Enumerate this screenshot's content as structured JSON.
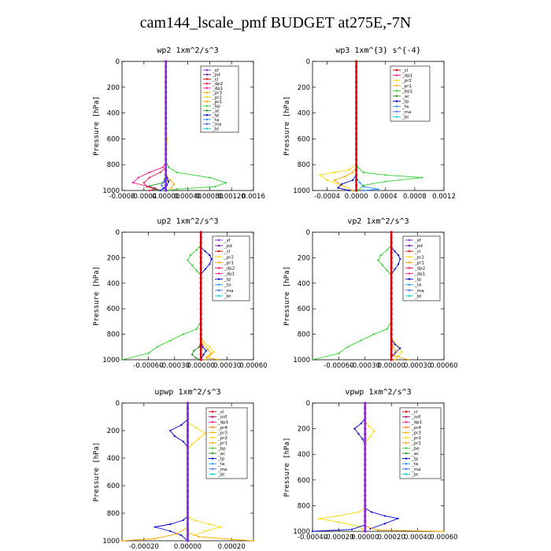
{
  "title": "cam144_lscale_pmf  BUDGET at275E,-7N",
  "colors": {
    "sf": "#8a2be2",
    "pd": "#5a0fa0",
    "cl": "#d20000",
    "mfl": "#a0005a",
    "dp1": "#ff1493",
    "dp2": "#e6194b",
    "pr1": "#ffa500",
    "pr2": "#ffd700",
    "pr3": "#ffb000",
    "pr4": "#ff7f00",
    "bp": "#32cd32",
    "ac": "#228b22",
    "tp": "#0000cd",
    "ta": "#1e90ff",
    "ma": "#4169e1",
    "bt": "#00ced1"
  },
  "chart_data": [
    {
      "type": "line",
      "title": "wp2  1xm^2/s^3",
      "ylabel": "Pressure [hPa]",
      "ylim": [
        1000,
        0
      ],
      "yticks": [
        "0",
        "200",
        "400",
        "600",
        "800",
        "1000"
      ],
      "xlim": [
        -0.0008,
        0.0016
      ],
      "xticks": [
        "-0.0008",
        "-0.0004",
        "0.00000",
        "0.00040",
        "0.00080",
        "0.00120",
        "0.0016"
      ],
      "legend": [
        "_sf",
        "_pd",
        "_cl",
        "_dp2",
        "_dp1",
        "_pr3",
        "_pr2",
        "_pr1",
        "_bp",
        "_ac",
        "_tp",
        "_ta",
        "_ma",
        "_bt"
      ],
      "series": [
        {
          "key": "bp",
          "x": [
            0,
            0,
            1e-05,
            5e-05,
            0.0002,
            0.0008,
            0.0011,
            0.0009,
            0.0002,
            5e-05
          ],
          "y": [
            0,
            700,
            780,
            820,
            860,
            900,
            940,
            970,
            990,
            1000
          ]
        },
        {
          "key": "dp1",
          "x": [
            0,
            0,
            -5e-05,
            -0.0003,
            -0.0005,
            -0.0006,
            -0.0002,
            -0.0001
          ],
          "y": [
            0,
            780,
            820,
            860,
            900,
            940,
            980,
            1000
          ]
        },
        {
          "key": "dp2",
          "x": [
            0,
            0,
            -0.0001,
            -0.0003,
            -0.0004,
            -0.00035,
            -0.0002,
            -0.0003
          ],
          "y": [
            0,
            820,
            860,
            900,
            940,
            970,
            990,
            1000
          ]
        },
        {
          "key": "pr1",
          "x": [
            0,
            0,
            2e-05,
            8e-05,
            0.00015,
            0.0001,
            3e-05
          ],
          "y": [
            0,
            860,
            890,
            920,
            950,
            980,
            1000
          ]
        },
        {
          "key": "ac",
          "x": [
            0,
            0,
            -2e-05,
            -5e-05,
            -0.0003,
            -0.0002,
            -0.0001
          ],
          "y": [
            0,
            880,
            910,
            940,
            965,
            990,
            1000
          ]
        },
        {
          "key": "tp",
          "x": [
            0,
            0,
            2e-05,
            5e-05,
            2e-05,
            -5e-05,
            -0.0001
          ],
          "y": [
            0,
            870,
            900,
            930,
            960,
            985,
            1000
          ]
        },
        {
          "key": "ma",
          "x": [
            0,
            0,
            -3e-05,
            -8e-05,
            -2e-05,
            2e-05
          ],
          "y": [
            0,
            900,
            930,
            960,
            985,
            1000
          ]
        },
        {
          "key": "pr2",
          "x": [
            0,
            0,
            1e-05,
            0,
            2e-05,
            0
          ],
          "y": [
            0,
            150,
            230,
            300,
            600,
            1000
          ]
        },
        {
          "key": "cl",
          "x": [
            0,
            0
          ],
          "y": [
            0,
            1000
          ]
        },
        {
          "key": "sf",
          "x": [
            0,
            0
          ],
          "y": [
            0,
            1000
          ]
        }
      ]
    },
    {
      "type": "line",
      "title": "wp3  1xm^{3} s^{-4}",
      "ylabel": "Pressure [hPa]",
      "ylim": [
        1000,
        0
      ],
      "yticks": [
        "0",
        "200",
        "400",
        "600",
        "800",
        "1000"
      ],
      "xlim": [
        -0.0006,
        0.0012
      ],
      "xticks": [
        "-0.0004",
        "0.0000",
        "0.0004",
        "0.0008",
        "0.0012"
      ],
      "legend": [
        "_cl",
        "_dp1",
        "_pr2",
        "_pr1",
        "_bp1",
        "_ac",
        "_tp",
        "_ta",
        "_ma",
        "_bt"
      ],
      "series": [
        {
          "key": "bp",
          "x": [
            0,
            0,
            2e-05,
            0.0001,
            0.0004,
            0.0009,
            0.0004,
            0.0001,
            2e-05
          ],
          "y": [
            0,
            780,
            820,
            860,
            880,
            900,
            930,
            960,
            1000
          ]
        },
        {
          "key": "pr2",
          "x": [
            0,
            0,
            -0.0001,
            -0.0003,
            -0.0005,
            -0.0004,
            -0.0002,
            -5e-05
          ],
          "y": [
            0,
            800,
            840,
            860,
            880,
            920,
            960,
            1000
          ]
        },
        {
          "key": "pr1",
          "x": [
            0,
            0,
            -5e-05,
            -0.00015,
            -0.0003,
            -0.0002,
            -5e-05
          ],
          "y": [
            0,
            820,
            860,
            890,
            920,
            960,
            1000
          ]
        },
        {
          "key": "tp",
          "x": [
            0,
            0,
            -5e-05,
            -0.0002,
            -0.00025,
            -0.0001
          ],
          "y": [
            0,
            880,
            920,
            950,
            980,
            1000
          ]
        },
        {
          "key": "ta",
          "x": [
            0,
            0,
            5e-05,
            0.0001,
            0.0003,
            0.0001
          ],
          "y": [
            0,
            900,
            940,
            970,
            990,
            1000
          ]
        },
        {
          "key": "cl",
          "x": [
            0,
            0
          ],
          "y": [
            0,
            1000
          ]
        }
      ]
    },
    {
      "type": "line",
      "title": "up2  1xm^2/s^3",
      "ylabel": "Pressure [hPa]",
      "ylim": [
        1000,
        0
      ],
      "yticks": [
        "0",
        "200",
        "400",
        "600",
        "800",
        "1000"
      ],
      "xlim": [
        -0.0009,
        0.0006
      ],
      "xticks": [
        "-0.00060",
        "-0.00030",
        "0.00000",
        "0.00030",
        "0.00060"
      ],
      "legend": [
        "_sf",
        "_pd",
        "_cl",
        "_pr2",
        "_pr1",
        "_dp2",
        "_dp1",
        "_tp",
        "_ta",
        "_ma",
        "_bt"
      ],
      "series": [
        {
          "key": "bp",
          "x": [
            0,
            -5e-05,
            -0.00012,
            -0.00015,
            -0.0001,
            -5e-05,
            0,
            0
          ],
          "y": [
            100,
            140,
            180,
            220,
            260,
            300,
            340,
            360
          ]
        },
        {
          "key": "tp",
          "x": [
            0,
            5e-05,
            0.0001,
            0.00012,
            0.0001,
            5e-05,
            0
          ],
          "y": [
            120,
            150,
            180,
            210,
            250,
            290,
            330
          ]
        },
        {
          "key": "bp",
          "x": [
            0,
            -5e-05,
            -0.0002,
            -0.00035,
            -0.0005,
            -0.0006,
            -0.0009
          ],
          "y": [
            700,
            760,
            800,
            850,
            900,
            950,
            1000
          ]
        },
        {
          "key": "pr2",
          "x": [
            0,
            3e-05,
            0.0001,
            0.00015,
            0.0001,
            5e-05
          ],
          "y": [
            820,
            860,
            900,
            940,
            970,
            1000
          ]
        },
        {
          "key": "pr1",
          "x": [
            0,
            2e-05,
            8e-05,
            0.00012,
            6e-05,
            0.0002
          ],
          "y": [
            840,
            880,
            920,
            950,
            980,
            1000
          ]
        },
        {
          "key": "tp",
          "x": [
            0,
            2e-05,
            6e-05,
            3e-05,
            0
          ],
          "y": [
            860,
            900,
            930,
            960,
            1000
          ]
        },
        {
          "key": "ac",
          "x": [
            0,
            -2e-05,
            -8e-05,
            -0.0001,
            -6e-05,
            0
          ],
          "y": [
            860,
            900,
            930,
            960,
            985,
            1000
          ]
        },
        {
          "key": "cl",
          "x": [
            0,
            0
          ],
          "y": [
            0,
            1000
          ]
        }
      ]
    },
    {
      "type": "line",
      "title": "vp2  1xm^2/s^3",
      "ylabel": "Pressure [hPa]",
      "ylim": [
        1000,
        0
      ],
      "yticks": [
        "0",
        "200",
        "400",
        "600",
        "800",
        "1000"
      ],
      "xlim": [
        -0.0009,
        0.0006
      ],
      "xticks": [
        "-0.00060",
        "-0.00030",
        "0.00000",
        "0.00030",
        "0.00060"
      ],
      "legend": [
        "_sf",
        "_pd",
        "_cl",
        "_pr2",
        "_pr1",
        "_dp2",
        "_dp1",
        "_tp",
        "_ta",
        "_ma",
        "_bt"
      ],
      "series": [
        {
          "key": "bp",
          "x": [
            0,
            -5e-05,
            -0.00012,
            -0.00015,
            -0.0001,
            -5e-05,
            0,
            0
          ],
          "y": [
            100,
            140,
            180,
            220,
            260,
            300,
            340,
            360
          ]
        },
        {
          "key": "tp",
          "x": [
            0,
            4e-05,
            8e-05,
            0.0001,
            8e-05,
            4e-05,
            0
          ],
          "y": [
            120,
            150,
            180,
            210,
            250,
            290,
            330
          ]
        },
        {
          "key": "bp",
          "x": [
            0,
            -5e-05,
            -0.0002,
            -0.00035,
            -0.0005,
            -0.0006,
            -0.0009
          ],
          "y": [
            700,
            760,
            800,
            850,
            900,
            950,
            1000
          ]
        },
        {
          "key": "pr2",
          "x": [
            0,
            3e-05,
            8e-05,
            0.00012,
            8e-05,
            4e-05
          ],
          "y": [
            820,
            860,
            900,
            940,
            970,
            1000
          ]
        },
        {
          "key": "tp",
          "x": [
            0,
            4e-05,
            0.0001,
            5e-05,
            0
          ],
          "y": [
            840,
            880,
            910,
            940,
            980
          ]
        },
        {
          "key": "pr1",
          "x": [
            0,
            2e-05,
            6e-05,
            3e-05,
            0.0002
          ],
          "y": [
            860,
            900,
            940,
            970,
            1000
          ]
        },
        {
          "key": "cl",
          "x": [
            0,
            0
          ],
          "y": [
            0,
            1000
          ]
        }
      ]
    },
    {
      "type": "line",
      "title": "upwp  1xm^2/s^3",
      "ylabel": "Pressure [hPa]",
      "ylim": [
        1000,
        0
      ],
      "yticks": [
        "0",
        "200",
        "400",
        "600",
        "800",
        "1000"
      ],
      "xlim": [
        -0.0003,
        0.0003
      ],
      "xticks": [
        "-0.00020",
        "0.00000",
        "0.00020"
      ],
      "legend": [
        "_cl",
        "_mfl",
        "_dp1",
        "_pr4",
        "_pr3",
        "_pr2",
        "_pr1",
        "_bp",
        "_ac",
        "_tp",
        "_ta",
        "_ma",
        "_bt"
      ],
      "series": [
        {
          "key": "tp",
          "x": [
            0,
            -3e-05,
            -8e-05,
            -6e-05,
            -2e-05,
            0
          ],
          "y": [
            120,
            160,
            200,
            240,
            280,
            320
          ]
        },
        {
          "key": "pr2",
          "x": [
            0,
            4e-05,
            8e-05,
            5e-05,
            2e-05,
            0
          ],
          "y": [
            140,
            180,
            220,
            260,
            300,
            340
          ]
        },
        {
          "key": "tp",
          "x": [
            0,
            -2e-05,
            -8e-05,
            -0.00015,
            -8e-05,
            -3e-05,
            0
          ],
          "y": [
            820,
            850,
            880,
            900,
            930,
            960,
            1000
          ]
        },
        {
          "key": "pr2",
          "x": [
            0,
            3e-05,
            0.0001,
            0.00015,
            8e-05,
            3e-05
          ],
          "y": [
            820,
            850,
            880,
            900,
            930,
            960
          ]
        },
        {
          "key": "pr1",
          "x": [
            0,
            -5e-05,
            -0.00015,
            -0.0003
          ],
          "y": [
            900,
            950,
            985,
            1000
          ]
        },
        {
          "key": "pr3",
          "x": [
            0,
            5e-05,
            0.0002,
            0.0003
          ],
          "y": [
            940,
            970,
            990,
            1000
          ]
        },
        {
          "key": "cl",
          "x": [
            0,
            0
          ],
          "y": [
            0,
            1000
          ]
        },
        {
          "key": "sf",
          "x": [
            0,
            0
          ],
          "y": [
            0,
            1000
          ]
        }
      ]
    },
    {
      "type": "line",
      "title": "vpwp  1xm^2/s^3",
      "ylabel": "Pressure [hPa]",
      "ylim": [
        1000,
        0
      ],
      "yticks": [
        "0",
        "200",
        "400",
        "600",
        "800",
        "1000"
      ],
      "xlim": [
        -0.0004,
        0.0006
      ],
      "xticks": [
        "-0.00040",
        "-0.00020",
        "0.00000",
        "0.00020",
        "0.00040",
        "0.00060"
      ],
      "legend": [
        "_cl",
        "_mfl",
        "_dp1",
        "_pr4",
        "_pr3",
        "_pr2",
        "_pr1",
        "_be",
        "_ac",
        "_tp",
        "_ta",
        "_ma",
        "_bt"
      ],
      "series": [
        {
          "key": "tp",
          "x": [
            0,
            -3e-05,
            -8e-05,
            -5e-05,
            -2e-05,
            0
          ],
          "y": [
            120,
            160,
            200,
            240,
            280,
            320
          ]
        },
        {
          "key": "pr2",
          "x": [
            0,
            3e-05,
            7e-05,
            4e-05,
            1e-05,
            0
          ],
          "y": [
            140,
            180,
            220,
            260,
            300,
            340
          ]
        },
        {
          "key": "pr2",
          "x": [
            0,
            -5e-05,
            -0.0002,
            -0.00035,
            -0.0002,
            -5e-05,
            0
          ],
          "y": [
            820,
            850,
            880,
            900,
            930,
            960,
            1000
          ]
        },
        {
          "key": "tp",
          "x": [
            0,
            5e-05,
            0.00015,
            0.00025,
            0.00015,
            4e-05
          ],
          "y": [
            820,
            850,
            880,
            900,
            940,
            980
          ]
        },
        {
          "key": "tp",
          "x": [
            0,
            -0.0001,
            -0.0004
          ],
          "y": [
            950,
            985,
            1000
          ]
        },
        {
          "key": "pr1",
          "x": [
            0,
            0.0001,
            0.0006
          ],
          "y": [
            960,
            990,
            1000
          ]
        },
        {
          "key": "cl",
          "x": [
            0,
            0
          ],
          "y": [
            0,
            1000
          ]
        },
        {
          "key": "sf",
          "x": [
            0,
            0
          ],
          "y": [
            0,
            1000
          ]
        }
      ]
    }
  ]
}
